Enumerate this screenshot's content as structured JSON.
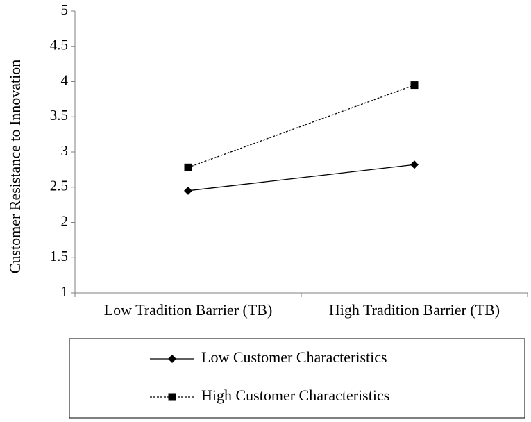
{
  "chart_data": {
    "type": "line",
    "categories": [
      "Low Tradition Barrier (TB)",
      "High Tradition Barrier (TB)"
    ],
    "series": [
      {
        "name": "Low Customer Characteristics",
        "values": [
          2.45,
          2.82
        ],
        "line_style": "solid",
        "marker": "diamond",
        "color": "#000000"
      },
      {
        "name": "High Customer Characteristics",
        "values": [
          2.78,
          3.95
        ],
        "line_style": "dotted",
        "marker": "square",
        "color": "#000000"
      }
    ],
    "title": "",
    "xlabel": "",
    "ylabel": "Customer Resistance to Innovation",
    "ylim": [
      1,
      5
    ],
    "yticks": [
      "1",
      "1.5",
      "2",
      "2.5",
      "3",
      "3.5",
      "4",
      "4.5",
      "5"
    ],
    "grid": false,
    "legend_position": "bottom"
  }
}
